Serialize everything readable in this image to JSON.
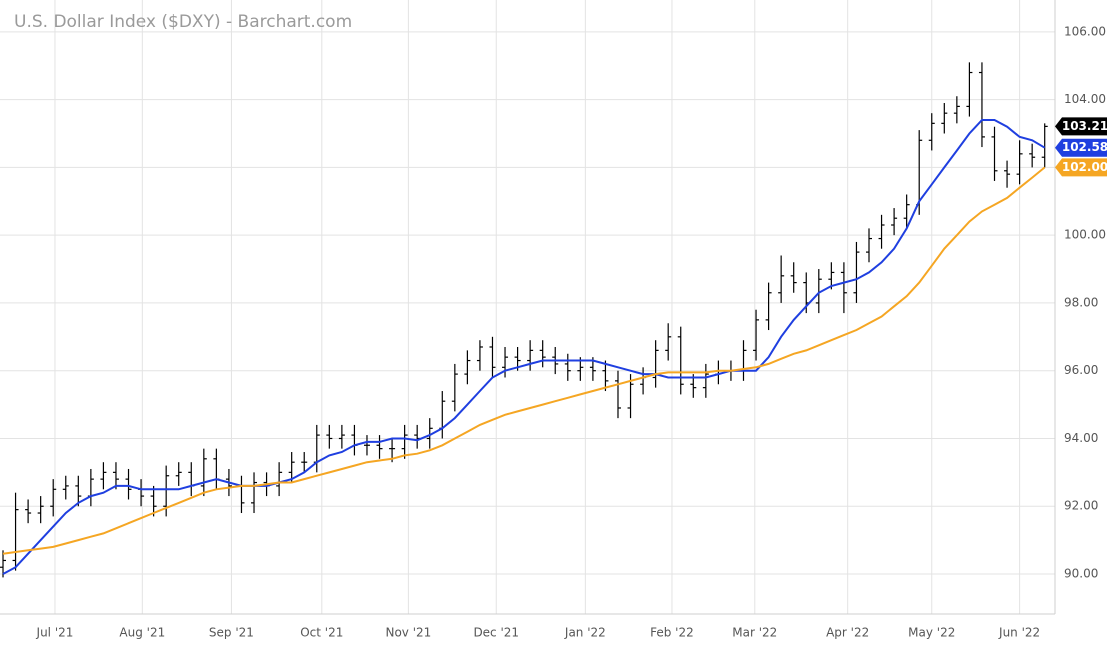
{
  "chart_data": {
    "type": "ohlc",
    "title": "U.S. Dollar Index ($DXY) - Barchart.com",
    "xlim": [
      -0.24,
      83.82
    ],
    "xticks": [
      {
        "value": 4.14,
        "label": "Jul '21"
      },
      {
        "value": 11.1,
        "label": "Aug '21"
      },
      {
        "value": 18.2,
        "label": "Sep '21"
      },
      {
        "value": 25.4,
        "label": "Oct '21"
      },
      {
        "value": 32.3,
        "label": "Nov '21"
      },
      {
        "value": 39.3,
        "label": "Dec '21"
      },
      {
        "value": 46.4,
        "label": "Jan '22"
      },
      {
        "value": 53.3,
        "label": "Feb '22"
      },
      {
        "value": 59.9,
        "label": "Mar '22"
      },
      {
        "value": 67.3,
        "label": "Apr '22"
      },
      {
        "value": 74.0,
        "label": "May '22"
      },
      {
        "value": 81.0,
        "label": "Jun '22"
      }
    ],
    "ylim": [
      88.82,
      106.94
    ],
    "yticks": [
      {
        "value": 90,
        "label": "90.00"
      },
      {
        "value": 92,
        "label": "92.00"
      },
      {
        "value": 94,
        "label": "94.00"
      },
      {
        "value": 96,
        "label": "96.00"
      },
      {
        "value": 98,
        "label": "98.00"
      },
      {
        "value": 100,
        "label": "100.00"
      },
      {
        "value": 102,
        "label": "102.00"
      },
      {
        "value": 104,
        "label": "104.00"
      },
      {
        "value": 106,
        "label": "106.00"
      }
    ],
    "grid": true,
    "ohlc": {
      "color": "#000000",
      "last_label": "103.21",
      "open": [
        90.2,
        90.4,
        91.9,
        91.8,
        92.0,
        92.5,
        92.6,
        92.3,
        92.8,
        93.0,
        92.8,
        92.5,
        92.3,
        92.0,
        92.9,
        93.0,
        92.6,
        93.4,
        92.8,
        92.6,
        92.1,
        92.7,
        92.6,
        93.0,
        93.3,
        93.3,
        94.1,
        94.0,
        94.1,
        93.8,
        93.8,
        93.7,
        93.7,
        94.1,
        94.0,
        94.3,
        95.1,
        95.9,
        96.3,
        96.7,
        96.1,
        96.4,
        96.3,
        96.6,
        96.4,
        96.2,
        96.0,
        96.1,
        96.0,
        95.7,
        94.9,
        95.6,
        95.8,
        96.6,
        97.0,
        95.6,
        95.5,
        95.9,
        96.0,
        96.0,
        96.6,
        97.5,
        98.3,
        98.8,
        98.6,
        98.0,
        98.7,
        98.9,
        98.3,
        99.5,
        99.9,
        100.3,
        100.5,
        100.9,
        102.8,
        103.3,
        103.6,
        103.8,
        104.8,
        102.9,
        101.9,
        101.8,
        102.4,
        102.3
      ],
      "high": [
        90.7,
        92.4,
        92.2,
        92.3,
        92.8,
        92.9,
        92.9,
        93.1,
        93.3,
        93.3,
        93.1,
        92.8,
        92.6,
        93.2,
        93.3,
        93.3,
        93.7,
        93.7,
        93.1,
        92.9,
        93.0,
        93.0,
        93.3,
        93.6,
        93.6,
        94.4,
        94.4,
        94.4,
        94.4,
        94.1,
        94.1,
        94.0,
        94.4,
        94.4,
        94.6,
        95.4,
        96.2,
        96.6,
        96.9,
        97.0,
        96.7,
        96.7,
        96.9,
        96.9,
        96.7,
        96.5,
        96.4,
        96.4,
        96.3,
        96.0,
        95.9,
        96.1,
        96.9,
        97.4,
        97.3,
        95.9,
        96.2,
        96.3,
        96.3,
        96.9,
        97.8,
        98.6,
        99.4,
        99.2,
        98.9,
        99.0,
        99.2,
        99.2,
        99.8,
        100.2,
        100.6,
        100.8,
        101.2,
        103.1,
        103.6,
        103.9,
        104.1,
        105.1,
        105.1,
        103.2,
        102.2,
        102.8,
        102.7,
        103.3
      ],
      "low": [
        89.9,
        90.1,
        91.5,
        91.5,
        91.7,
        92.2,
        92.0,
        92.0,
        92.5,
        92.5,
        92.2,
        92.0,
        91.7,
        91.7,
        92.6,
        92.3,
        92.3,
        92.5,
        92.3,
        91.8,
        91.8,
        92.3,
        92.3,
        92.7,
        93.0,
        93.0,
        93.7,
        93.7,
        93.5,
        93.5,
        93.4,
        93.3,
        93.4,
        93.7,
        93.7,
        94.0,
        94.8,
        95.6,
        96.0,
        95.8,
        95.8,
        96.0,
        96.0,
        96.1,
        95.9,
        95.7,
        95.7,
        95.7,
        95.4,
        94.6,
        94.6,
        95.3,
        95.5,
        96.3,
        95.3,
        95.2,
        95.2,
        95.6,
        95.7,
        95.7,
        96.3,
        97.2,
        98.0,
        98.3,
        97.7,
        97.7,
        98.4,
        97.7,
        98.0,
        99.2,
        99.6,
        100.0,
        100.2,
        100.6,
        102.5,
        103.0,
        103.3,
        103.5,
        102.6,
        101.6,
        101.4,
        101.5,
        102.0,
        102.0
      ],
      "close": [
        90.4,
        91.9,
        91.8,
        92.0,
        92.5,
        92.6,
        92.3,
        92.8,
        93.0,
        92.8,
        92.5,
        92.3,
        92.0,
        92.9,
        93.0,
        92.6,
        93.4,
        92.8,
        92.6,
        92.1,
        92.7,
        92.6,
        93.0,
        93.3,
        93.3,
        94.1,
        94.0,
        94.1,
        93.8,
        93.8,
        93.7,
        93.7,
        94.1,
        94.0,
        94.3,
        95.1,
        95.9,
        96.3,
        96.7,
        96.1,
        96.4,
        96.3,
        96.6,
        96.4,
        96.2,
        96.0,
        96.1,
        96.0,
        95.7,
        94.9,
        95.6,
        95.8,
        96.6,
        97.0,
        95.6,
        95.5,
        95.9,
        96.0,
        96.0,
        96.6,
        97.5,
        98.3,
        98.8,
        98.6,
        98.0,
        98.7,
        98.9,
        98.3,
        99.5,
        99.9,
        100.3,
        100.5,
        100.9,
        102.8,
        103.3,
        103.6,
        103.8,
        104.8,
        102.9,
        101.9,
        101.8,
        102.4,
        102.3,
        103.21
      ]
    },
    "lines": [
      {
        "color": "#1f3fe0",
        "last_label": "102.58",
        "values": [
          90.0,
          90.2,
          90.6,
          91.0,
          91.4,
          91.8,
          92.1,
          92.3,
          92.4,
          92.6,
          92.6,
          92.5,
          92.5,
          92.5,
          92.5,
          92.6,
          92.7,
          92.8,
          92.7,
          92.6,
          92.6,
          92.6,
          92.7,
          92.8,
          93.0,
          93.3,
          93.5,
          93.6,
          93.8,
          93.9,
          93.9,
          94.0,
          94.0,
          93.95,
          94.1,
          94.3,
          94.6,
          95.0,
          95.4,
          95.8,
          96.0,
          96.1,
          96.2,
          96.3,
          96.3,
          96.3,
          96.3,
          96.3,
          96.2,
          96.1,
          96.0,
          95.9,
          95.9,
          95.8,
          95.8,
          95.8,
          95.8,
          95.9,
          96.0,
          96.0,
          96.0,
          96.4,
          97.0,
          97.5,
          97.9,
          98.3,
          98.5,
          98.6,
          98.7,
          98.9,
          99.2,
          99.6,
          100.2,
          101.0,
          101.5,
          102.0,
          102.5,
          103.0,
          103.4,
          103.4,
          103.2,
          102.9,
          102.8,
          102.58
        ]
      },
      {
        "color": "#f5a623",
        "last_label": "102.00",
        "values": [
          90.6,
          90.65,
          90.7,
          90.75,
          90.8,
          90.9,
          91.0,
          91.1,
          91.2,
          91.35,
          91.5,
          91.65,
          91.8,
          91.95,
          92.1,
          92.25,
          92.4,
          92.5,
          92.55,
          92.6,
          92.6,
          92.65,
          92.7,
          92.7,
          92.8,
          92.9,
          93.0,
          93.1,
          93.2,
          93.3,
          93.35,
          93.4,
          93.5,
          93.55,
          93.65,
          93.8,
          94.0,
          94.2,
          94.4,
          94.55,
          94.7,
          94.8,
          94.9,
          95.0,
          95.1,
          95.2,
          95.3,
          95.4,
          95.5,
          95.6,
          95.7,
          95.8,
          95.9,
          95.95,
          95.95,
          95.95,
          95.95,
          96.0,
          96.0,
          96.05,
          96.1,
          96.2,
          96.35,
          96.5,
          96.6,
          96.75,
          96.9,
          97.05,
          97.2,
          97.4,
          97.6,
          97.9,
          98.2,
          98.6,
          99.1,
          99.6,
          100.0,
          100.4,
          100.7,
          100.9,
          101.1,
          101.4,
          101.7,
          102.0
        ]
      }
    ]
  }
}
